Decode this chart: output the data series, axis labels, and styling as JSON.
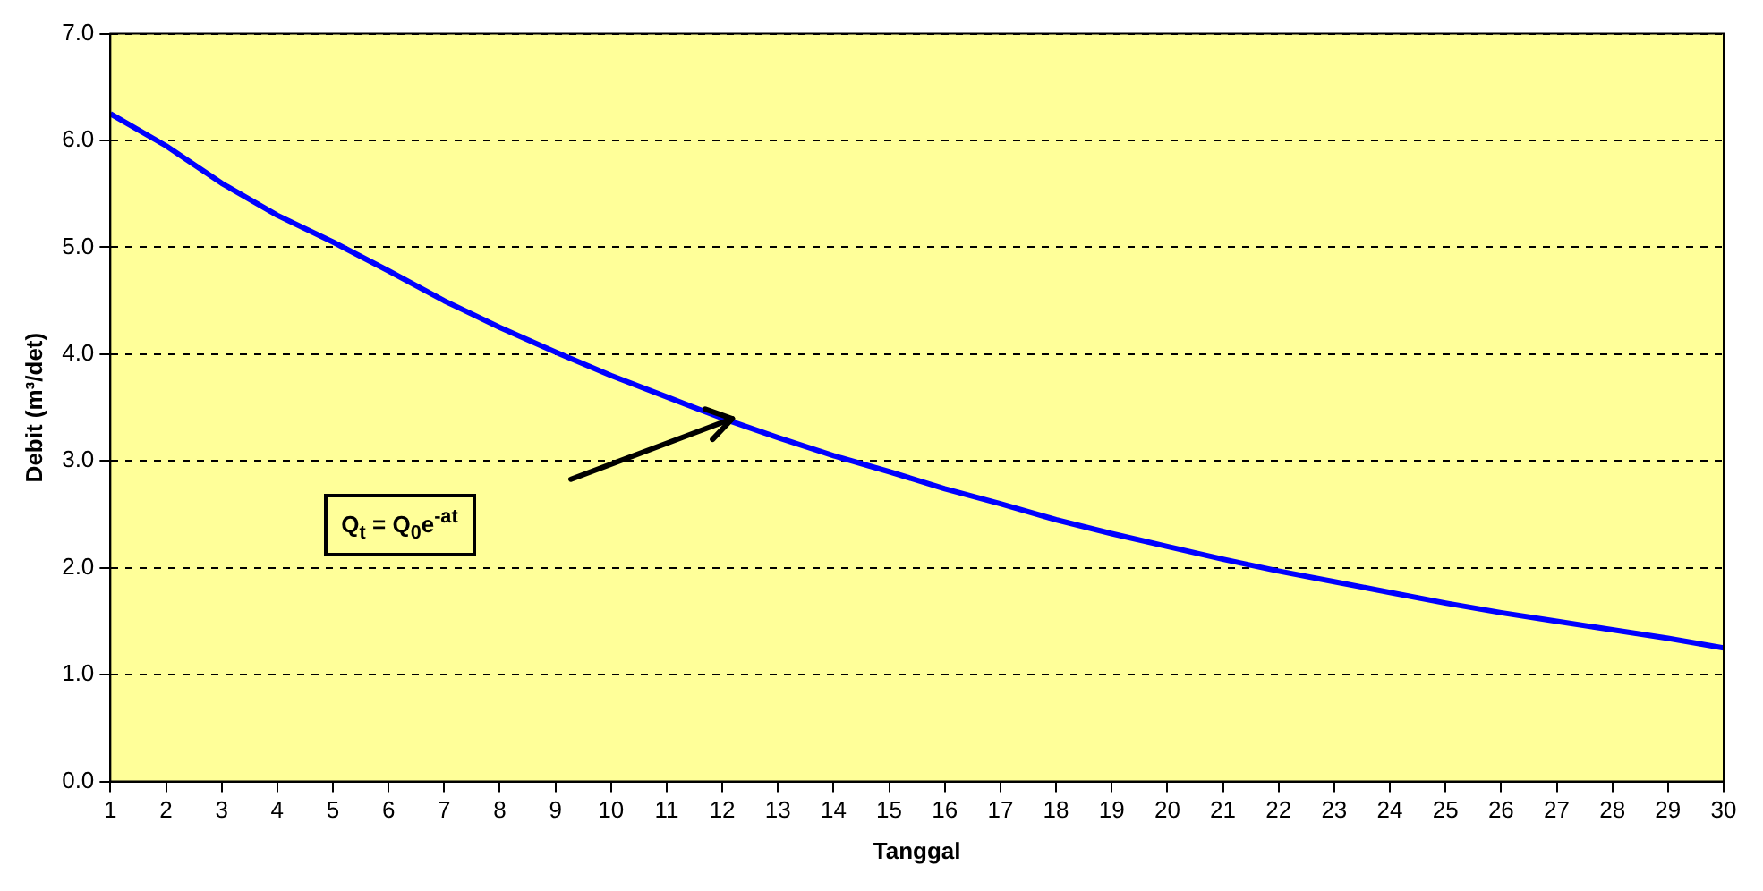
{
  "chart_data": {
    "type": "line",
    "xlabel": "Tanggal",
    "ylabel": "Debit (m³/det)",
    "x": [
      1,
      2,
      3,
      4,
      5,
      6,
      7,
      8,
      9,
      10,
      11,
      12,
      13,
      14,
      15,
      16,
      17,
      18,
      19,
      20,
      21,
      22,
      23,
      24,
      25,
      26,
      27,
      28,
      29,
      30
    ],
    "series": [
      {
        "color": "#0000ff",
        "values": [
          6.25,
          5.95,
          5.6,
          5.3,
          5.05,
          4.78,
          4.5,
          4.25,
          4.02,
          3.8,
          3.6,
          3.4,
          3.22,
          3.05,
          2.9,
          2.74,
          2.6,
          2.45,
          2.32,
          2.2,
          2.08,
          1.97,
          1.87,
          1.77,
          1.67,
          1.58,
          1.5,
          1.42,
          1.34,
          1.25
        ]
      }
    ],
    "xlim": [
      1,
      30
    ],
    "xticks": [
      1,
      2,
      3,
      4,
      5,
      6,
      7,
      8,
      9,
      10,
      11,
      12,
      13,
      14,
      15,
      16,
      17,
      18,
      19,
      20,
      21,
      22,
      23,
      24,
      25,
      26,
      27,
      28,
      29,
      30
    ],
    "ylim": [
      0,
      7
    ],
    "yticks": [
      {
        "value": 0,
        "label": "0.0"
      },
      {
        "value": 1,
        "label": "1.0"
      },
      {
        "value": 2,
        "label": "2.0"
      },
      {
        "value": 3,
        "label": "3.0"
      },
      {
        "value": 4,
        "label": "4.0"
      },
      {
        "value": 5,
        "label": "5.0"
      },
      {
        "value": 6,
        "label": "6.0"
      },
      {
        "value": 7,
        "label": "7.0"
      }
    ],
    "grid": "y",
    "line_style": "solid",
    "annotations": [
      "Q$_{t}$ = Q$_{0}$e$^{-at}$"
    ]
  }
}
